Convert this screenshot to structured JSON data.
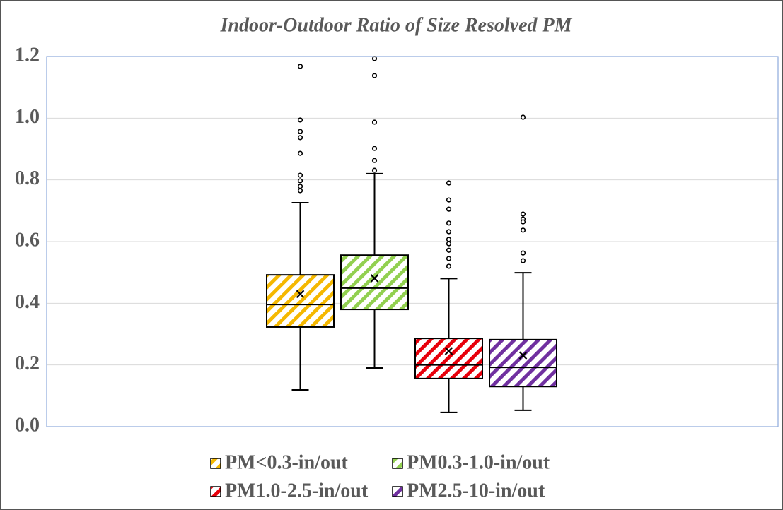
{
  "chart_data": {
    "type": "box",
    "title": "Indoor-Outdoor Ratio of Size Resolved PM",
    "ylim": [
      0,
      1.2
    ],
    "yticks": [
      {
        "value": 0,
        "label": "0.0"
      },
      0.2,
      0.4,
      0.6,
      0.8,
      {
        "value": 1,
        "label": "1.0"
      },
      1.2
    ],
    "grid": true,
    "legend": "bottom",
    "series": [
      {
        "name": "PM<0.3-in/out",
        "color": "#f5b800",
        "whisker_low": 0.119,
        "q1": 0.323,
        "median": 0.396,
        "q3": 0.492,
        "whisker_high": 0.726,
        "mean": 0.43,
        "outliers": [
          1.168,
          0.994,
          0.957,
          0.937,
          0.886,
          0.815,
          0.797,
          0.779,
          0.765
        ]
      },
      {
        "name": "PM0.3-1.0-in/out",
        "color": "#92d050",
        "whisker_low": 0.19,
        "q1": 0.38,
        "median": 0.449,
        "q3": 0.556,
        "whisker_high": 0.82,
        "mean": 0.481,
        "outliers": [
          1.193,
          1.138,
          0.987,
          0.902,
          0.863,
          0.831
        ]
      },
      {
        "name": "PM1.0-2.5-in/out",
        "color": "#e8000b",
        "whisker_low": 0.046,
        "q1": 0.156,
        "median": 0.2,
        "q3": 0.286,
        "whisker_high": 0.48,
        "mean": 0.245,
        "outliers": [
          0.79,
          0.735,
          0.705,
          0.66,
          0.632,
          0.607,
          0.593,
          0.572,
          0.545,
          0.52
        ]
      },
      {
        "name": "PM2.5-10-in/out",
        "color": "#7030a0",
        "whisker_low": 0.053,
        "q1": 0.13,
        "median": 0.192,
        "q3": 0.282,
        "whisker_high": 0.499,
        "mean": 0.231,
        "outliers": [
          1.003,
          0.689,
          0.673,
          0.664,
          0.637,
          0.563,
          0.538
        ]
      }
    ]
  }
}
